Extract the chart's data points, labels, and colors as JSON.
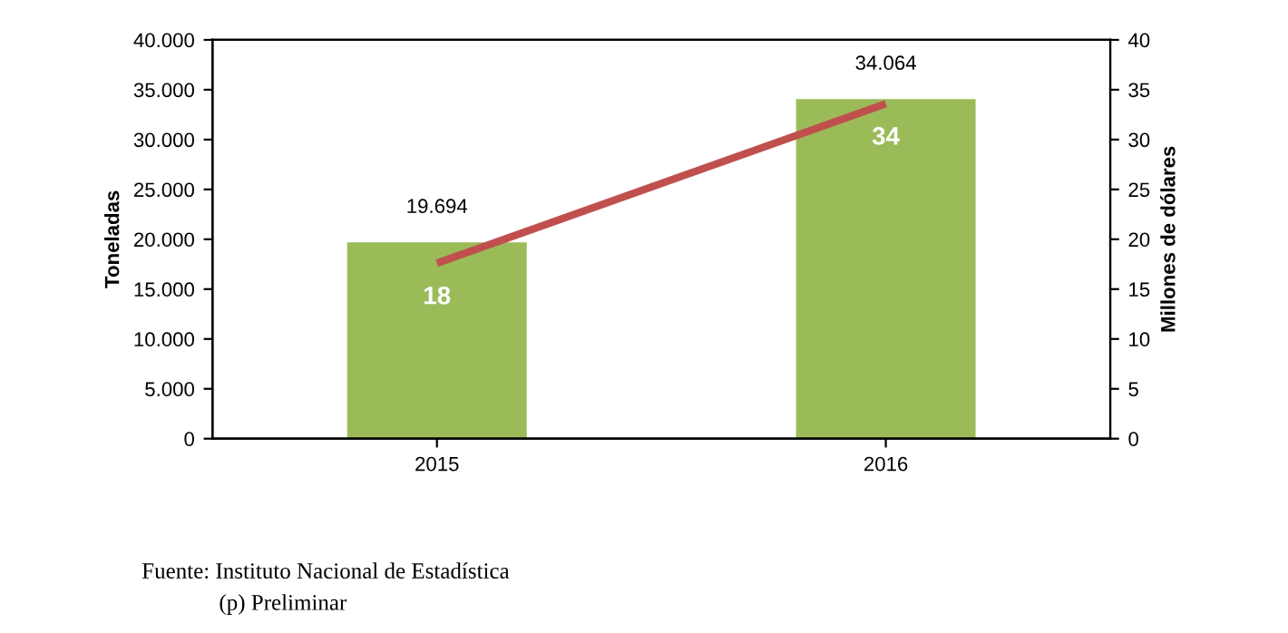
{
  "chart_data": {
    "type": "bar",
    "categories": [
      "2015",
      "2016"
    ],
    "ylabel": "Toneladas",
    "y2label": "Millones de dólares",
    "ylim": [
      0,
      40000
    ],
    "yticks": [
      {
        "value": 0,
        "label": "0"
      },
      {
        "value": 5000,
        "label": "5.000"
      },
      {
        "value": 10000,
        "label": "10.000"
      },
      {
        "value": 15000,
        "label": "15.000"
      },
      {
        "value": 20000,
        "label": "20.000"
      },
      {
        "value": 25000,
        "label": "25.000"
      },
      {
        "value": 30000,
        "label": "30.000"
      },
      {
        "value": 35000,
        "label": "35.000"
      },
      {
        "value": 40000,
        "label": "40.000"
      }
    ],
    "y2lim": [
      0,
      40
    ],
    "y2ticks": [
      0,
      5,
      10,
      15,
      20,
      25,
      30,
      35,
      40
    ],
    "series": [
      {
        "color": "#9bbb59",
        "values": [
          19694,
          34064
        ],
        "value_labels": [
          "19.694",
          "34.064"
        ]
      },
      {
        "type": "line",
        "axis": "y2",
        "color": "#c0504d",
        "values": [
          17.6,
          33.6
        ],
        "value_labels": [
          "18",
          "34"
        ]
      }
    ],
    "grid": false,
    "legend": false,
    "marker": "none",
    "line_style": "solid",
    "annotations": [
      "Fuente: Instituto Nacional de Estadística",
      "(p) Preliminar"
    ]
  }
}
